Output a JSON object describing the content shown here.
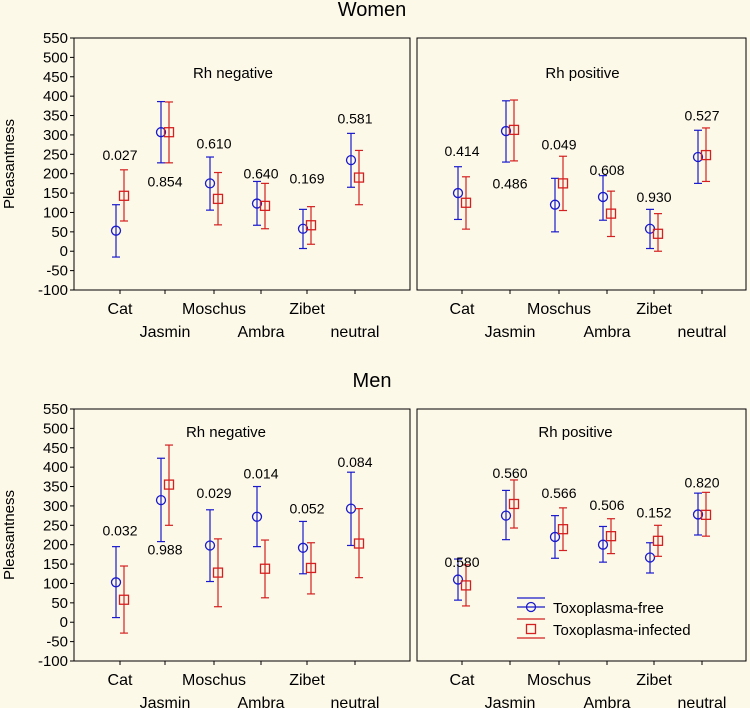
{
  "figure": {
    "background": "#fcf9e9"
  },
  "colors": {
    "free": "#1a1acc",
    "infected": "#d42020",
    "axis": "#000000",
    "ticks": "#777777"
  },
  "sections": [
    {
      "title": "Women"
    },
    {
      "title": "Men"
    }
  ],
  "legend": {
    "items": [
      {
        "label": "Toxoplasma-free",
        "marker": "circle",
        "color": "#1a1acc"
      },
      {
        "label": "Toxoplasma-infected",
        "marker": "square",
        "color": "#d42020"
      }
    ]
  },
  "chart_data": [
    {
      "type": "scatter",
      "title": "Rh negative",
      "section": "Women",
      "ylabel": "Pleasantness",
      "ylim": [
        -100,
        550
      ],
      "yticks": [
        -100,
        -50,
        0,
        50,
        100,
        150,
        200,
        250,
        300,
        350,
        400,
        450,
        500,
        550
      ],
      "categories": [
        "Cat",
        "Jasmin",
        "Moschus",
        "Ambra",
        "Zibet",
        "neutral"
      ],
      "series": [
        {
          "name": "Toxoplasma-free",
          "means": [
            53,
            307,
            175,
            123,
            58,
            235
          ],
          "lower": [
            -15,
            228,
            106,
            67,
            7,
            165
          ],
          "upper": [
            120,
            386,
            243,
            180,
            108,
            304
          ]
        },
        {
          "name": "Toxoplasma-infected",
          "means": [
            143,
            307,
            135,
            117,
            67,
            190
          ],
          "lower": [
            78,
            228,
            68,
            58,
            18,
            120
          ],
          "upper": [
            210,
            385,
            203,
            175,
            115,
            260
          ]
        }
      ],
      "p_values": [
        {
          "category": "Cat",
          "value": "0.027",
          "y": 248
        },
        {
          "category": "Jasmin",
          "value": "0.854",
          "y": 180
        },
        {
          "category": "Moschus",
          "value": "0.610",
          "y": 278
        },
        {
          "category": "Ambra",
          "value": "0.640",
          "y": 200
        },
        {
          "category": "Zibet",
          "value": "0.169",
          "y": 187
        },
        {
          "category": "neutral",
          "value": "0.581",
          "y": 342
        }
      ]
    },
    {
      "type": "scatter",
      "title": "Rh positive",
      "section": "Women",
      "ylabel": "Pleasantness",
      "ylim": [
        -100,
        550
      ],
      "yticks": [
        -100,
        -50,
        0,
        50,
        100,
        150,
        200,
        250,
        300,
        350,
        400,
        450,
        500,
        550
      ],
      "categories": [
        "Cat",
        "Jasmin",
        "Moschus",
        "Ambra",
        "Zibet",
        "neutral"
      ],
      "series": [
        {
          "name": "Toxoplasma-free",
          "means": [
            150,
            310,
            120,
            140,
            58,
            243
          ],
          "lower": [
            82,
            230,
            50,
            80,
            7,
            175
          ],
          "upper": [
            218,
            388,
            188,
            195,
            108,
            312
          ]
        },
        {
          "name": "Toxoplasma-infected",
          "means": [
            125,
            313,
            175,
            97,
            45,
            248
          ],
          "lower": [
            57,
            233,
            105,
            38,
            0,
            180
          ],
          "upper": [
            192,
            390,
            245,
            155,
            97,
            318
          ]
        }
      ],
      "p_values": [
        {
          "category": "Cat",
          "value": "0.414",
          "y": 258
        },
        {
          "category": "Jasmin",
          "value": "0.486",
          "y": 175
        },
        {
          "category": "Moschus",
          "value": "0.049",
          "y": 275
        },
        {
          "category": "Ambra",
          "value": "0.608",
          "y": 210
        },
        {
          "category": "Zibet",
          "value": "0.930",
          "y": 140
        },
        {
          "category": "neutral",
          "value": "0.527",
          "y": 350
        }
      ]
    },
    {
      "type": "scatter",
      "title": "Rh negative",
      "section": "Men",
      "ylabel": "Pleasantness",
      "ylim": [
        -100,
        550
      ],
      "yticks": [
        -100,
        -50,
        0,
        50,
        100,
        150,
        200,
        250,
        300,
        350,
        400,
        450,
        500,
        550
      ],
      "categories": [
        "Cat",
        "Jasmin",
        "Moschus",
        "Ambra",
        "Zibet",
        "neutral"
      ],
      "series": [
        {
          "name": "Toxoplasma-free",
          "means": [
            103,
            315,
            198,
            272,
            192,
            293
          ],
          "lower": [
            12,
            208,
            105,
            195,
            125,
            198
          ],
          "upper": [
            195,
            423,
            290,
            350,
            260,
            387
          ]
        },
        {
          "name": "Toxoplasma-infected",
          "means": [
            58,
            355,
            128,
            138,
            140,
            203
          ],
          "lower": [
            -28,
            250,
            40,
            63,
            73,
            115
          ],
          "upper": [
            145,
            457,
            215,
            212,
            205,
            293
          ]
        }
      ],
      "p_values": [
        {
          "category": "Cat",
          "value": "0.032",
          "y": 237
        },
        {
          "category": "Jasmin",
          "value": "0.988",
          "y": 188
        },
        {
          "category": "Moschus",
          "value": "0.029",
          "y": 333
        },
        {
          "category": "Ambra",
          "value": "0.014",
          "y": 383
        },
        {
          "category": "Zibet",
          "value": "0.052",
          "y": 293
        },
        {
          "category": "neutral",
          "value": "0.084",
          "y": 413
        }
      ]
    },
    {
      "type": "scatter",
      "title": "Rh positive",
      "section": "Men",
      "ylabel": "Pleasantness",
      "ylim": [
        -100,
        550
      ],
      "yticks": [
        -100,
        -50,
        0,
        50,
        100,
        150,
        200,
        250,
        300,
        350,
        400,
        450,
        500,
        550
      ],
      "categories": [
        "Cat",
        "Jasmin",
        "Moschus",
        "Ambra",
        "Zibet",
        "neutral"
      ],
      "series": [
        {
          "name": "Toxoplasma-free",
          "means": [
            110,
            275,
            220,
            200,
            167,
            278
          ],
          "lower": [
            57,
            213,
            165,
            155,
            127,
            225
          ],
          "upper": [
            163,
            340,
            275,
            247,
            205,
            333
          ]
        },
        {
          "name": "Toxoplasma-infected",
          "means": [
            95,
            305,
            240,
            222,
            210,
            277
          ],
          "lower": [
            42,
            243,
            185,
            177,
            170,
            222
          ],
          "upper": [
            148,
            367,
            295,
            267,
            250,
            335
          ]
        }
      ],
      "p_values": [
        {
          "category": "Cat",
          "value": "0.580",
          "y": 155
        },
        {
          "category": "Jasmin",
          "value": "0.560",
          "y": 385
        },
        {
          "category": "Moschus",
          "value": "0.566",
          "y": 333
        },
        {
          "category": "Ambra",
          "value": "0.506",
          "y": 303
        },
        {
          "category": "Zibet",
          "value": "0.152",
          "y": 283
        },
        {
          "category": "neutral",
          "value": "0.820",
          "y": 360
        }
      ]
    }
  ]
}
